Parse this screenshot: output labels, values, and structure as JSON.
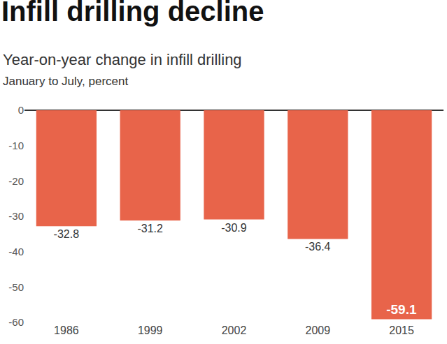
{
  "chart_data": {
    "type": "bar",
    "title": "Infill drilling decline",
    "subtitle": "Year-on-year change in infill drilling",
    "y_label": "January to July, percent",
    "categories": [
      "1986",
      "1999",
      "2002",
      "2009",
      "2015"
    ],
    "values": [
      -32.8,
      -31.2,
      -30.9,
      -36.4,
      -59.1
    ],
    "color": "#e8644a",
    "ylim": [
      -60,
      0
    ],
    "yticks": [
      0,
      -10,
      -20,
      -30,
      -40,
      -50,
      -60
    ],
    "grid": false,
    "data_labels": true
  }
}
